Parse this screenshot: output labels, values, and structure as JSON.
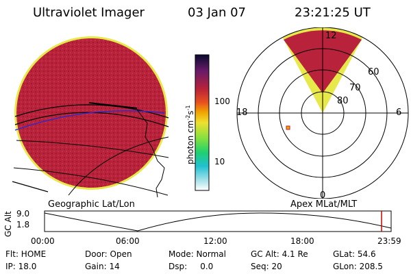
{
  "header": {
    "title": "Ultraviolet Imager",
    "date": "03 Jan 07",
    "time": "23:21:25 UT"
  },
  "colorbar": {
    "unit_label": "photon cm",
    "unit_sup1": "-2",
    "unit_mid": "s",
    "unit_sup2": "-1",
    "ticks": [
      "100",
      "10"
    ]
  },
  "left_panel": {
    "label": "Geographic Lat/Lon"
  },
  "right_panel": {
    "label": "Apex  MLat/MLT",
    "lat_labels": [
      "60",
      "70",
      "80"
    ],
    "mlt_labels": [
      "12",
      "18",
      "6",
      "0"
    ]
  },
  "altitude_plot": {
    "ylabel": "GC Alt",
    "yticks": [
      "9.0",
      "1.8"
    ],
    "xticks": [
      "00:00",
      "06:00",
      "12:00",
      "18:00",
      "23:59"
    ],
    "current_time_marker_color": "#cc0000"
  },
  "info": {
    "row1": [
      "Flt: HOME",
      "Door: Open",
      "Mode: Normal",
      "GC Alt: 4.1 Re",
      "GLat:  54.6"
    ],
    "row2": [
      "IP: 18.0",
      "Gain: 14",
      "Dsp:     0.0",
      "Seq: 20",
      "GLon: 208.5"
    ]
  },
  "colors": {
    "image_fill": "#b8223a",
    "image_rim": "#e7e84a",
    "trace": "#000000"
  }
}
